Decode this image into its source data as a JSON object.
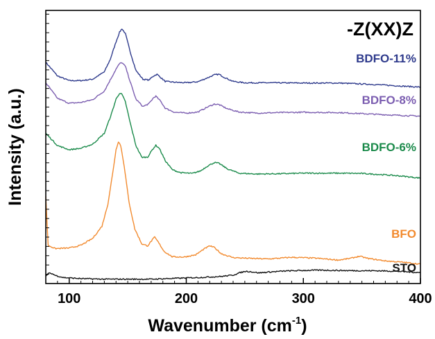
{
  "chart_data": {
    "type": "line",
    "title": "",
    "annotation": "-Z(XX)Z",
    "xlabel": "Wavenumber (cm",
    "xlabel_sup": "-1",
    "xlabel_close": ")",
    "ylabel": "Intensity (a.u.)",
    "xlim": [
      80,
      400
    ],
    "ylim": [
      0,
      100
    ],
    "y_tick_labels": false,
    "grid": false,
    "legend": "inline labels at right end of each curve",
    "x_ticks": [
      "100",
      "200",
      "300",
      "400"
    ],
    "series": [
      {
        "name": "BDFO-11%",
        "color": "#2e3a8c",
        "points": [
          [
            80,
            81.0
          ],
          [
            90,
            76.0
          ],
          [
            100,
            74.3
          ],
          [
            110,
            74.3
          ],
          [
            120,
            74.8
          ],
          [
            130,
            77.5
          ],
          [
            135,
            82.0
          ],
          [
            140,
            88.5
          ],
          [
            143,
            92.0
          ],
          [
            145,
            93.3
          ],
          [
            148,
            91.5
          ],
          [
            152,
            85.0
          ],
          [
            157,
            78.0
          ],
          [
            163,
            74.8
          ],
          [
            168,
            74.5
          ],
          [
            172,
            76.0
          ],
          [
            175,
            76.6
          ],
          [
            178,
            75.5
          ],
          [
            182,
            74.0
          ],
          [
            190,
            73.7
          ],
          [
            200,
            73.5
          ],
          [
            210,
            73.9
          ],
          [
            218,
            75.3
          ],
          [
            224,
            76.4
          ],
          [
            228,
            76.6
          ],
          [
            232,
            75.6
          ],
          [
            240,
            74.0
          ],
          [
            250,
            73.5
          ],
          [
            275,
            73.5
          ],
          [
            300,
            73.4
          ],
          [
            330,
            73.4
          ],
          [
            360,
            72.9
          ],
          [
            380,
            72.4
          ],
          [
            400,
            71.9
          ]
        ]
      },
      {
        "name": "BDFO-8%",
        "color": "#7b5db0",
        "points": [
          [
            80,
            73.5
          ],
          [
            90,
            67.8
          ],
          [
            100,
            66.0
          ],
          [
            110,
            66.3
          ],
          [
            120,
            67.3
          ],
          [
            130,
            70.5
          ],
          [
            135,
            74.5
          ],
          [
            140,
            78.5
          ],
          [
            143,
            80.5
          ],
          [
            145,
            80.9
          ],
          [
            148,
            79.5
          ],
          [
            152,
            74.0
          ],
          [
            157,
            67.5
          ],
          [
            163,
            64.8
          ],
          [
            168,
            65.8
          ],
          [
            172,
            68.0
          ],
          [
            174,
            68.6
          ],
          [
            178,
            66.8
          ],
          [
            182,
            64.2
          ],
          [
            190,
            62.7
          ],
          [
            200,
            62.4
          ],
          [
            210,
            62.8
          ],
          [
            218,
            64.6
          ],
          [
            224,
            65.7
          ],
          [
            228,
            65.5
          ],
          [
            235,
            64.0
          ],
          [
            245,
            62.8
          ],
          [
            260,
            62.4
          ],
          [
            280,
            62.6
          ],
          [
            300,
            62.7
          ],
          [
            330,
            62.6
          ],
          [
            360,
            62.0
          ],
          [
            380,
            61.6
          ],
          [
            400,
            61.3
          ]
        ]
      },
      {
        "name": "BDFO-6%",
        "color": "#1a8a4a",
        "points": [
          [
            80,
            55.0
          ],
          [
            90,
            50.5
          ],
          [
            100,
            49.0
          ],
          [
            110,
            49.5
          ],
          [
            120,
            51.0
          ],
          [
            130,
            55.0
          ],
          [
            136,
            62.0
          ],
          [
            140,
            67.5
          ],
          [
            143,
            69.7
          ],
          [
            145,
            69.3
          ],
          [
            148,
            66.5
          ],
          [
            152,
            59.0
          ],
          [
            157,
            50.5
          ],
          [
            162,
            46.2
          ],
          [
            167,
            46.3
          ],
          [
            171,
            49.0
          ],
          [
            174,
            50.6
          ],
          [
            177,
            49.5
          ],
          [
            182,
            45.0
          ],
          [
            188,
            41.7
          ],
          [
            195,
            40.6
          ],
          [
            205,
            40.3
          ],
          [
            212,
            41.2
          ],
          [
            218,
            43.0
          ],
          [
            224,
            44.3
          ],
          [
            228,
            44.0
          ],
          [
            235,
            42.0
          ],
          [
            245,
            40.4
          ],
          [
            260,
            40.1
          ],
          [
            280,
            40.2
          ],
          [
            300,
            40.4
          ],
          [
            330,
            40.4
          ],
          [
            350,
            40.3
          ],
          [
            370,
            39.8
          ],
          [
            385,
            39.3
          ],
          [
            400,
            38.6
          ]
        ]
      },
      {
        "name": "BFO",
        "color": "#f28a2e",
        "points": [
          [
            80,
            32.0
          ],
          [
            82,
            14.0
          ],
          [
            88,
            12.8
          ],
          [
            100,
            13.0
          ],
          [
            110,
            14.0
          ],
          [
            120,
            16.5
          ],
          [
            128,
            21.0
          ],
          [
            133,
            29.0
          ],
          [
            137,
            40.0
          ],
          [
            140,
            49.0
          ],
          [
            142,
            52.0
          ],
          [
            144,
            50.5
          ],
          [
            147,
            43.0
          ],
          [
            151,
            30.0
          ],
          [
            156,
            20.0
          ],
          [
            162,
            14.5
          ],
          [
            167,
            13.8
          ],
          [
            171,
            16.0
          ],
          [
            173,
            17.0
          ],
          [
            176,
            15.2
          ],
          [
            181,
            11.8
          ],
          [
            188,
            9.8
          ],
          [
            198,
            9.7
          ],
          [
            208,
            10.5
          ],
          [
            215,
            12.6
          ],
          [
            220,
            13.8
          ],
          [
            224,
            13.2
          ],
          [
            230,
            10.9
          ],
          [
            240,
            9.5
          ],
          [
            255,
            9.2
          ],
          [
            270,
            9.0
          ],
          [
            290,
            9.6
          ],
          [
            310,
            9.3
          ],
          [
            330,
            8.6
          ],
          [
            340,
            9.2
          ],
          [
            348,
            10.0
          ],
          [
            355,
            9.2
          ],
          [
            370,
            8.3
          ],
          [
            385,
            7.8
          ],
          [
            400,
            7.1
          ]
        ]
      },
      {
        "name": "STO",
        "color": "#111111",
        "points": [
          [
            80,
            2.6
          ],
          [
            82,
            3.7
          ],
          [
            85,
            3.7
          ],
          [
            88,
            3.0
          ],
          [
            95,
            2.2
          ],
          [
            110,
            1.8
          ],
          [
            130,
            1.6
          ],
          [
            150,
            1.6
          ],
          [
            170,
            1.6
          ],
          [
            190,
            1.9
          ],
          [
            210,
            2.2
          ],
          [
            230,
            2.6
          ],
          [
            240,
            3.1
          ],
          [
            246,
            4.0
          ],
          [
            251,
            4.5
          ],
          [
            256,
            4.3
          ],
          [
            262,
            3.9
          ],
          [
            270,
            4.2
          ],
          [
            285,
            4.6
          ],
          [
            300,
            4.8
          ],
          [
            315,
            4.9
          ],
          [
            330,
            4.8
          ],
          [
            345,
            4.7
          ],
          [
            360,
            4.7
          ],
          [
            380,
            4.5
          ],
          [
            400,
            4.0
          ]
        ]
      }
    ]
  }
}
